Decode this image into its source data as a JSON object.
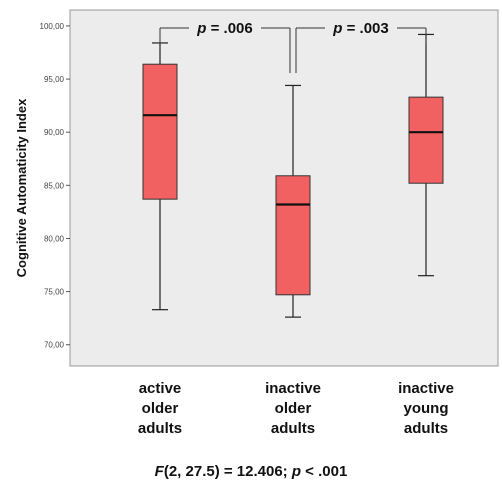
{
  "chart_data": {
    "type": "box",
    "ylabel": "Cognitive Automaticity Index",
    "ylim": [
      68,
      101.5
    ],
    "yticks": [
      70,
      75,
      80,
      85,
      90,
      95,
      100
    ],
    "ytick_labels": [
      "70,00",
      "75,00",
      "80,00",
      "85,00",
      "90,00",
      "95,00",
      "100,00"
    ],
    "categories": [
      [
        "active",
        "older",
        "adults"
      ],
      [
        "inactive",
        "older",
        "adults"
      ],
      [
        "inactive",
        "young",
        "adults"
      ]
    ],
    "boxes": [
      {
        "min": 73.3,
        "q1": 83.7,
        "median": 91.6,
        "q3": 96.4,
        "max": 98.4
      },
      {
        "min": 72.6,
        "q1": 74.7,
        "median": 83.2,
        "q3": 85.9,
        "max": 94.4
      },
      {
        "min": 76.5,
        "q1": 85.2,
        "median": 90.0,
        "q3": 93.3,
        "max": 99.2
      }
    ],
    "box_color": "#f26161",
    "annotations": [
      {
        "between": [
          0,
          1
        ],
        "p_label": "p",
        "p_value": " = .006"
      },
      {
        "between": [
          1,
          2
        ],
        "p_label": "p",
        "p_value": " = .003"
      }
    ],
    "grid": false
  },
  "footer": {
    "stat_name": "F",
    "stat_args": "(2, 27.5) = 12.406; ",
    "p_label": "p",
    "p_value": " < .001"
  }
}
